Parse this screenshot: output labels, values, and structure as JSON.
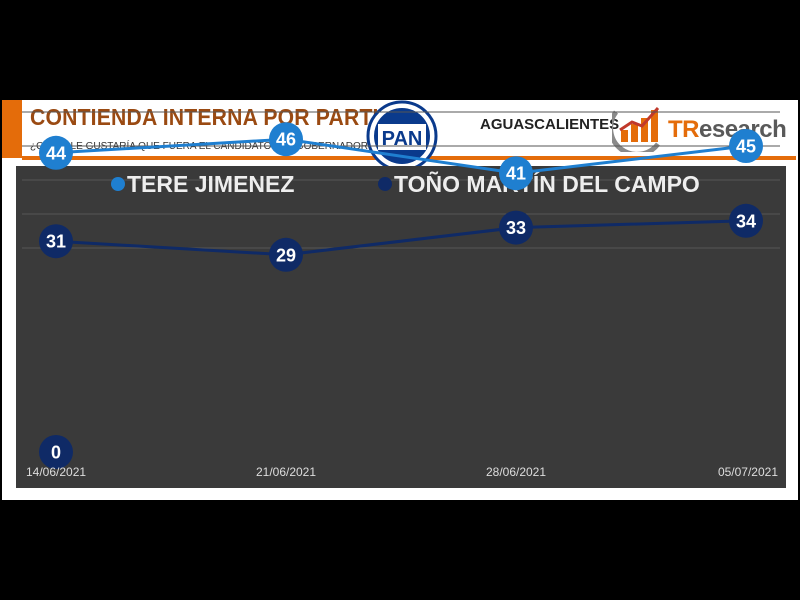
{
  "header": {
    "title": "CONTIENDA INTERNA POR PARTIDO",
    "subtitle": "¿QUIÉN LE GUSTARÍA QUE FUERA EL CANDIDATO(A) A GOBERNADOR?",
    "party_logo_text": "PAN",
    "region": "AGUASCALIENTES",
    "brand_prefix": "TR",
    "brand_suffix": "esearch"
  },
  "colors": {
    "accent": "#e46c0a",
    "title": "#9a4a12",
    "plot_bg": "#3a3a3a",
    "series_1": "#1f7fd0",
    "series_2": "#0f2a66",
    "pan_blue": "#0a3a8c"
  },
  "chart_data": {
    "type": "line",
    "title": "",
    "xlabel": "",
    "ylabel": "",
    "categories": [
      "14/06/2021",
      "21/06/2021",
      "28/06/2021",
      "05/07/2021"
    ],
    "ylim": [
      0,
      50
    ],
    "grid": true,
    "legend_position": "top",
    "series": [
      {
        "name": "TERE JIMENEZ",
        "values": [
          44,
          46,
          41,
          45
        ],
        "color": "#1f7fd0"
      },
      {
        "name": "TOÑO MARTÍN DEL CAMPO",
        "values": [
          31,
          29,
          33,
          34
        ],
        "color": "#0f2a66"
      }
    ],
    "annotations": [
      {
        "category": "14/06/2021",
        "value": 0,
        "label": "0",
        "color": "#0f2a66"
      }
    ]
  }
}
